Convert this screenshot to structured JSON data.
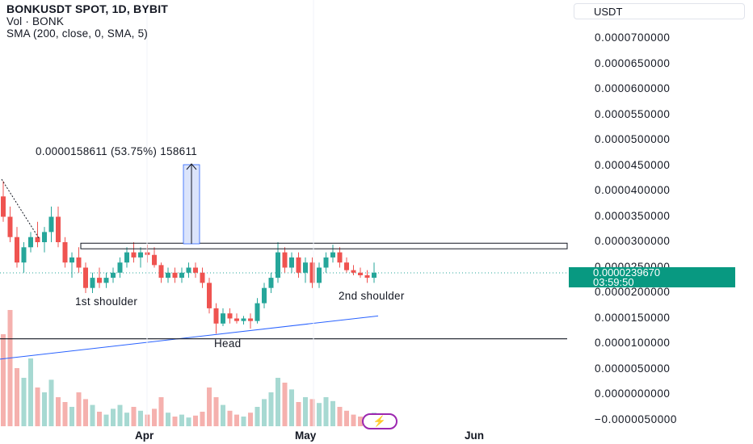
{
  "legend": {
    "title": "BONKUSDT SPOT, 1D, BYBIT",
    "volume": "Vol · BONK",
    "sma": "SMA (200, close, 0, SMA, 5)"
  },
  "currency_label": "USDT",
  "y_axis_labels": [
    "0.0000700000",
    "0.0000650000",
    "0.0000600000",
    "0.0000550000",
    "0.0000500000",
    "0.0000450000",
    "0.0000400000",
    "0.0000350000",
    "0.0000300000",
    "0.0000250000",
    "0.0000200000",
    "0.0000150000",
    "0.0000100000",
    "0.0000050000",
    "0.0000000000",
    "−0.0000050000"
  ],
  "x_axis_labels": [
    "Apr",
    "May",
    "Jun"
  ],
  "price_tag": {
    "price": "0.0000239670",
    "countdown": "03:59:50"
  },
  "annotations": {
    "measure": "0.0000158611 (53.75%) 158611",
    "first_shoulder": "1st shoulder",
    "second_shoulder": "2nd shoulder",
    "head": "Head"
  },
  "colors": {
    "up": "#26a69a",
    "down": "#ef5350",
    "sma": "#2962ff",
    "tag": "#089981",
    "bolt": "#9c27b0"
  },
  "icons": {
    "bolt": "lightning-icon"
  },
  "chart_data": {
    "type": "candlestick",
    "yrange": [
      -5e-06,
      7e-05
    ],
    "neckline_zone": [
      2.87e-05,
      2.98e-05
    ],
    "support_line": 1.1e-05,
    "candles": [
      [
        3.9e-05,
        4.2e-05,
        3.4e-05,
        3.5e-05
      ],
      [
        3.5e-05,
        3.7e-05,
        3e-05,
        3.1e-05
      ],
      [
        3.1e-05,
        3.3e-05,
        2.5e-05,
        2.6e-05
      ],
      [
        2.6e-05,
        3e-05,
        2.4e-05,
        2.9e-05
      ],
      [
        2.9e-05,
        3.2e-05,
        2.8e-05,
        3.1e-05
      ],
      [
        3.1e-05,
        3.4e-05,
        2.9e-05,
        3e-05
      ],
      [
        3e-05,
        3.3e-05,
        2.8e-05,
        3.2e-05
      ],
      [
        3.2e-05,
        3.7e-05,
        3e-05,
        3.5e-05
      ],
      [
        3.5e-05,
        3.7e-05,
        2.9e-05,
        3e-05
      ],
      [
        3e-05,
        3.1e-05,
        2.5e-05,
        2.6e-05
      ],
      [
        2.6e-05,
        2.8e-05,
        2.3e-05,
        2.7e-05
      ],
      [
        2.7e-05,
        2.9e-05,
        2.4e-05,
        2.5e-05
      ],
      [
        2.5e-05,
        2.6e-05,
        2e-05,
        2.1e-05
      ],
      [
        2.1e-05,
        2.4e-05,
        2e-05,
        2.3e-05
      ],
      [
        2.3e-05,
        2.5e-05,
        2.1e-05,
        2.2e-05
      ],
      [
        2.2e-05,
        2.4e-05,
        2.1e-05,
        2.3e-05
      ],
      [
        2.3e-05,
        2.5e-05,
        2.2e-05,
        2.4e-05
      ],
      [
        2.4e-05,
        2.7e-05,
        2.3e-05,
        2.6e-05
      ],
      [
        2.6e-05,
        2.9e-05,
        2.5e-05,
        2.8e-05
      ],
      [
        2.8e-05,
        3e-05,
        2.6e-05,
        2.7e-05
      ],
      [
        2.7e-05,
        2.9e-05,
        2.5e-05,
        2.8e-05
      ],
      [
        2.8e-05,
        2.95e-05,
        2.6e-05,
        2.75e-05
      ],
      [
        2.75e-05,
        2.9e-05,
        2.5e-05,
        2.55e-05
      ],
      [
        2.55e-05,
        2.6e-05,
        2.2e-05,
        2.3e-05
      ],
      [
        2.3e-05,
        2.5e-05,
        2.2e-05,
        2.4e-05
      ],
      [
        2.4e-05,
        2.5e-05,
        2.2e-05,
        2.3e-05
      ],
      [
        2.3e-05,
        2.5e-05,
        2.2e-05,
        2.4e-05
      ],
      [
        2.4e-05,
        2.6e-05,
        2.3e-05,
        2.5e-05
      ],
      [
        2.5e-05,
        2.6e-05,
        2.3e-05,
        2.4e-05
      ],
      [
        2.4e-05,
        2.5e-05,
        2.1e-05,
        2.2e-05
      ],
      [
        2.2e-05,
        2.3e-05,
        1.6e-05,
        1.7e-05
      ],
      [
        1.7e-05,
        1.8e-05,
        1.2e-05,
        1.4e-05
      ],
      [
        1.4e-05,
        1.7e-05,
        1.35e-05,
        1.6e-05
      ],
      [
        1.6e-05,
        1.7e-05,
        1.4e-05,
        1.5e-05
      ],
      [
        1.5e-05,
        1.6e-05,
        1.4e-05,
        1.45e-05
      ],
      [
        1.45e-05,
        1.55e-05,
        1.38e-05,
        1.5e-05
      ],
      [
        1.5e-05,
        1.6e-05,
        1.3e-05,
        1.45e-05
      ],
      [
        1.45e-05,
        1.9e-05,
        1.4e-05,
        1.8e-05
      ],
      [
        1.8e-05,
        2.2e-05,
        1.7e-05,
        2.1e-05
      ],
      [
        2.1e-05,
        2.4e-05,
        2e-05,
        2.3e-05
      ],
      [
        2.3e-05,
        3e-05,
        2.2e-05,
        2.8e-05
      ],
      [
        2.8e-05,
        2.9e-05,
        2.4e-05,
        2.5e-05
      ],
      [
        2.5e-05,
        2.8e-05,
        2.4e-05,
        2.7e-05
      ],
      [
        2.7e-05,
        2.8e-05,
        2.3e-05,
        2.4e-05
      ],
      [
        2.4e-05,
        2.7e-05,
        2.2e-05,
        2.6e-05
      ],
      [
        2.6e-05,
        2.7e-05,
        2.1e-05,
        2.2e-05
      ],
      [
        2.2e-05,
        2.6e-05,
        2.1e-05,
        2.5e-05
      ],
      [
        2.5e-05,
        2.8e-05,
        2.4e-05,
        2.7e-05
      ],
      [
        2.7e-05,
        2.95e-05,
        2.6e-05,
        2.8e-05
      ],
      [
        2.8e-05,
        2.9e-05,
        2.5e-05,
        2.6e-05
      ],
      [
        2.6e-05,
        2.7e-05,
        2.4e-05,
        2.45e-05
      ],
      [
        2.45e-05,
        2.55e-05,
        2.35e-05,
        2.4e-05
      ],
      [
        2.4e-05,
        2.5e-05,
        2.3e-05,
        2.35e-05
      ],
      [
        2.35e-05,
        2.45e-05,
        2.2e-05,
        2.3e-05
      ],
      [
        2.3e-05,
        2.6e-05,
        2.2e-05,
        2.4e-05
      ]
    ],
    "volumes": [
      95,
      120,
      60,
      50,
      70,
      40,
      35,
      48,
      30,
      25,
      20,
      35,
      28,
      22,
      15,
      12,
      18,
      22,
      14,
      20,
      16,
      12,
      18,
      30,
      14,
      10,
      12,
      9,
      11,
      15,
      40,
      30,
      22,
      16,
      12,
      10,
      14,
      20,
      28,
      35,
      50,
      45,
      38,
      25,
      30,
      28,
      24,
      30,
      26,
      20,
      16,
      12,
      10,
      8,
      14
    ],
    "sma": [
      [
        0,
        7e-06
      ],
      [
        468,
        1.55e-05
      ]
    ]
  }
}
